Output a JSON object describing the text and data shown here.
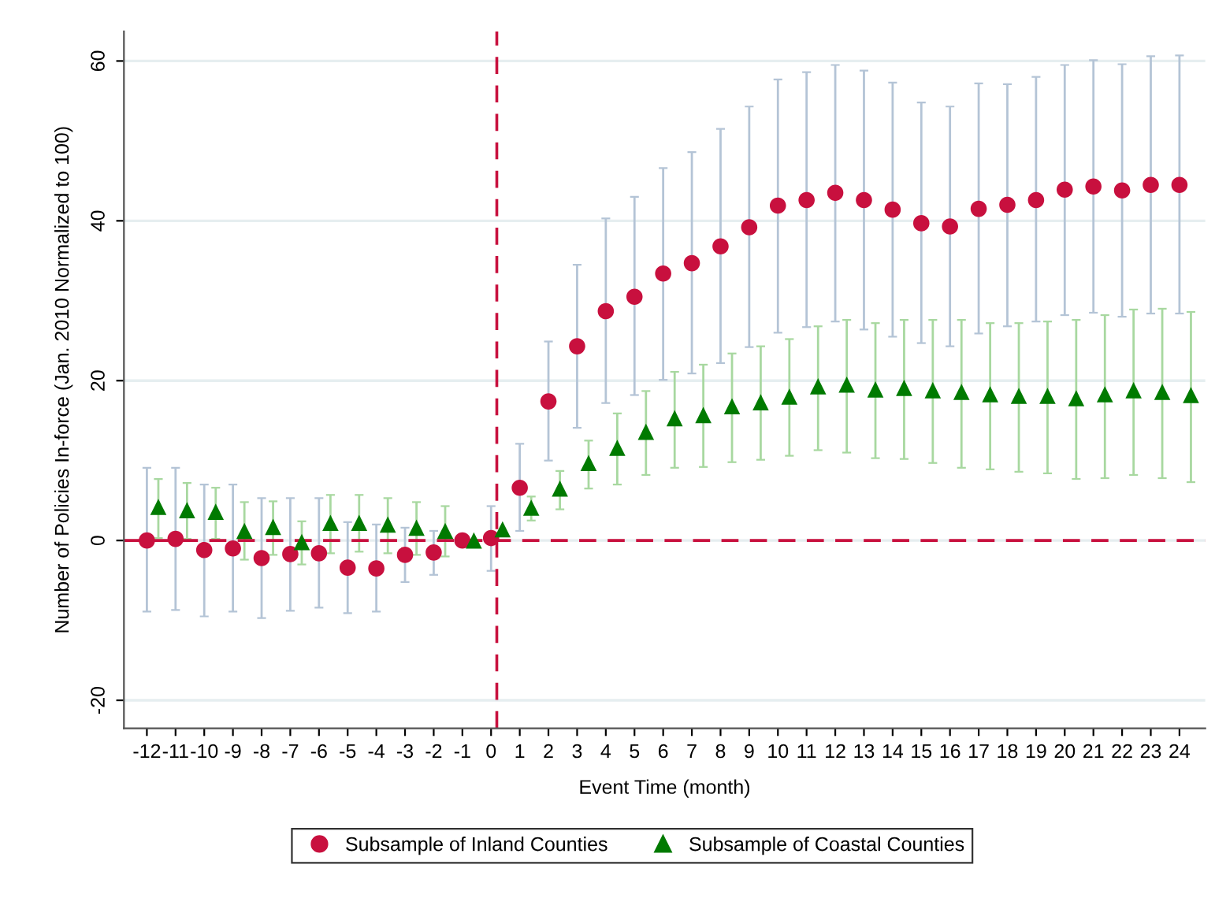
{
  "chart_data": {
    "type": "scatter",
    "xlabel": "Event Time (month)",
    "ylabel": "Number of Policies In-force (Jan. 2010 Normalized to 100)",
    "xlim": [
      -12.8,
      24.9
    ],
    "ylim": [
      -23.5,
      63.7
    ],
    "xticks": [
      -12,
      -11,
      -10,
      -9,
      -8,
      -7,
      -6,
      -5,
      -4,
      -3,
      -2,
      -1,
      0,
      1,
      2,
      3,
      4,
      5,
      6,
      7,
      8,
      9,
      10,
      11,
      12,
      13,
      14,
      15,
      16,
      17,
      18,
      19,
      20,
      21,
      22,
      23,
      24
    ],
    "yticks": [
      -20,
      0,
      20,
      40,
      60
    ],
    "grid": "y",
    "legend": "bottom",
    "ref_lines": [
      {
        "axis": "y",
        "value": 0,
        "color": "#c8103e",
        "line_style": "dashed"
      },
      {
        "axis": "x",
        "value": 0.2,
        "color": "#c8103e",
        "line_style": "dashed"
      }
    ],
    "series": [
      {
        "name": "Subsample of Inland Counties",
        "color": "#c8103e",
        "marker": "circle",
        "x": [
          -12,
          -11,
          -10,
          -9,
          -8,
          -7,
          -6,
          -5,
          -4,
          -3,
          -2,
          -1,
          0,
          1,
          2,
          3,
          4,
          5,
          6,
          7,
          8,
          9,
          10,
          11,
          12,
          13,
          14,
          15,
          16,
          17,
          18,
          19,
          20,
          21,
          22,
          23,
          24
        ],
        "values": [
          0,
          0.2,
          -1.2,
          -1.0,
          -2.2,
          -1.7,
          -1.6,
          -3.4,
          -3.5,
          -1.8,
          -1.5,
          0,
          0.3,
          6.6,
          17.4,
          24.3,
          28.7,
          30.5,
          33.4,
          34.7,
          36.8,
          39.2,
          41.9,
          42.6,
          43.5,
          42.6,
          41.4,
          39.7,
          39.3,
          41.5,
          42.0,
          42.6,
          43.9,
          44.3,
          43.8,
          44.5,
          44.5
        ],
        "errors": [
          [
            -8.9,
            9.1
          ],
          [
            -8.7,
            9.1
          ],
          [
            -9.5,
            7.0
          ],
          [
            -8.9,
            7.0
          ],
          [
            -9.7,
            5.3
          ],
          [
            -8.8,
            5.3
          ],
          [
            -8.4,
            5.3
          ],
          [
            -9.1,
            2.3
          ],
          [
            -8.9,
            2.0
          ],
          [
            -5.2,
            1.6
          ],
          [
            -4.3,
            1.2
          ],
          null,
          [
            -3.8,
            4.3
          ],
          [
            1.2,
            12.1
          ],
          [
            10.0,
            24.9
          ],
          [
            14.1,
            34.5
          ],
          [
            17.2,
            40.3
          ],
          [
            18.2,
            43.0
          ],
          [
            20.1,
            46.6
          ],
          [
            20.9,
            48.6
          ],
          [
            22.2,
            51.5
          ],
          [
            24.2,
            54.3
          ],
          [
            26.0,
            57.7
          ],
          [
            26.7,
            58.6
          ],
          [
            27.4,
            59.5
          ],
          [
            26.4,
            58.8
          ],
          [
            25.5,
            57.3
          ],
          [
            24.7,
            54.8
          ],
          [
            24.3,
            54.3
          ],
          [
            25.9,
            57.2
          ],
          [
            26.8,
            57.1
          ],
          [
            27.4,
            58.0
          ],
          [
            28.2,
            59.5
          ],
          [
            28.5,
            60.1
          ],
          [
            28.0,
            59.6
          ],
          [
            28.4,
            60.6
          ],
          [
            28.4,
            60.7
          ]
        ]
      },
      {
        "name": "Subsample of Coastal Counties",
        "color": "#007a00",
        "marker": "triangle",
        "x": [
          -11.6,
          -10.6,
          -9.6,
          -8.6,
          -7.6,
          -6.6,
          -5.6,
          -4.6,
          -3.6,
          -2.6,
          -1.6,
          -0.6,
          0.4,
          1.4,
          2.4,
          3.4,
          4.4,
          5.4,
          6.4,
          7.4,
          8.4,
          9.4,
          10.4,
          11.4,
          12.4,
          13.4,
          14.4,
          15.4,
          16.4,
          17.4,
          18.4,
          19.4,
          20.4,
          21.4,
          22.4,
          23.4,
          24.4
        ],
        "values": [
          4.2,
          3.8,
          3.6,
          1.2,
          1.7,
          -0.2,
          2.2,
          2.2,
          2.0,
          1.6,
          1.2,
          0,
          1.4,
          4.1,
          6.5,
          9.7,
          11.6,
          13.6,
          15.3,
          15.7,
          16.8,
          17.3,
          18.0,
          19.3,
          19.5,
          18.9,
          19.1,
          18.8,
          18.6,
          18.3,
          18.1,
          18.1,
          17.8,
          18.3,
          18.8,
          18.6,
          18.2
        ],
        "errors": [
          [
            0.3,
            7.7
          ],
          [
            0.2,
            7.2
          ],
          [
            0.2,
            6.6
          ],
          [
            -2.4,
            4.8
          ],
          [
            -1.8,
            4.9
          ],
          [
            -3.0,
            2.4
          ],
          [
            -1.6,
            5.7
          ],
          [
            -1.4,
            5.7
          ],
          [
            -1.6,
            5.3
          ],
          [
            -1.8,
            4.8
          ],
          [
            -2.0,
            4.3
          ],
          null,
          null,
          [
            2.5,
            5.5
          ],
          [
            3.9,
            8.7
          ],
          [
            6.5,
            12.5
          ],
          [
            7.0,
            15.9
          ],
          [
            8.2,
            18.7
          ],
          [
            9.1,
            21.1
          ],
          [
            9.2,
            22.0
          ],
          [
            9.8,
            23.4
          ],
          [
            10.1,
            24.3
          ],
          [
            10.6,
            25.2
          ],
          [
            11.3,
            26.8
          ],
          [
            11.0,
            27.6
          ],
          [
            10.3,
            27.2
          ],
          [
            10.2,
            27.6
          ],
          [
            9.7,
            27.6
          ],
          [
            9.1,
            27.6
          ],
          [
            8.9,
            27.2
          ],
          [
            8.6,
            27.2
          ],
          [
            8.4,
            27.4
          ],
          [
            7.7,
            27.6
          ],
          [
            7.8,
            28.2
          ],
          [
            8.2,
            28.9
          ],
          [
            7.8,
            29.0
          ],
          [
            7.3,
            28.6
          ]
        ]
      }
    ]
  }
}
